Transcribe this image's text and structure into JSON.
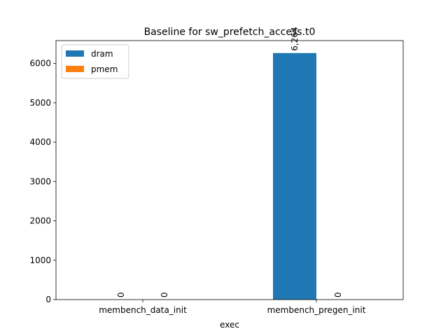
{
  "chart_data": {
    "type": "bar",
    "title": "Baseline for sw_prefetch_access.t0",
    "xlabel": "exec",
    "ylabel": "",
    "categories": [
      "membench_data_init",
      "membench_pregen_init"
    ],
    "series": [
      {
        "name": "dram",
        "values": [
          0,
          6264
        ],
        "color": "#1f77b4"
      },
      {
        "name": "pmem",
        "values": [
          0,
          0
        ],
        "color": "#ff7f0e"
      }
    ],
    "data_labels": [
      [
        "0",
        "6,264"
      ],
      [
        "0",
        "0"
      ]
    ],
    "ylim": [
      0,
      6580
    ],
    "yticks": [
      0,
      1000,
      2000,
      3000,
      4000,
      5000,
      6000
    ],
    "legend": "top-left",
    "grid": false
  }
}
